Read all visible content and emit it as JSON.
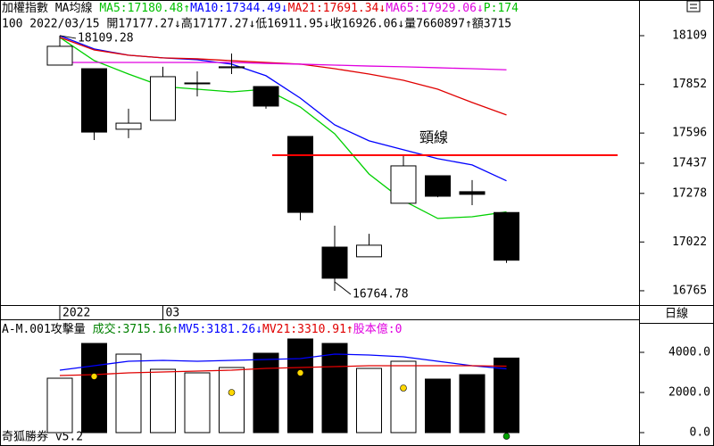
{
  "chart_data": [
    {
      "type": "candlestick",
      "title_parts": [
        {
          "text": "加權指數 MA均線 ",
          "color": "#000000"
        },
        {
          "text": "MA5:17180.48↑",
          "color": "#00c000"
        },
        {
          "text": "MA10:17344.49↓",
          "color": "#0000ff"
        },
        {
          "text": "MA21:17691.34↓",
          "color": "#e00000"
        },
        {
          "text": "MA65:17929.06↓",
          "color": "#e000e0"
        },
        {
          "text": "P:174",
          "color": "#00c000"
        }
      ],
      "info_line": "100 2022/03/15 開17177.27↓高17177.27↓低16911.95↓收16926.06↓量7660897↑額3715",
      "categories": [
        "2022",
        null,
        null,
        "03",
        null,
        null,
        null,
        null,
        null,
        null,
        null,
        null,
        null,
        null
      ],
      "open": [
        17954,
        17935,
        17616,
        17663,
        17860,
        17940,
        17841,
        17578,
        16995,
        16944,
        17226,
        17371,
        17287,
        17177.27
      ],
      "high": [
        18109.28,
        17935,
        17724,
        17945,
        17921,
        18015,
        17841,
        17578,
        17108,
        17065,
        17475,
        17371,
        17348,
        17177.27
      ],
      "low": [
        17954,
        17559,
        17569,
        17663,
        17789,
        17907,
        17724,
        17136,
        16764.78,
        16944,
        17226,
        17258,
        17216,
        16911.95
      ],
      "close": [
        18053,
        17601,
        17648,
        17893,
        17860,
        17945,
        17738,
        17178,
        16831,
        17005,
        17423,
        17263,
        17273,
        16926.06
      ],
      "series": [
        {
          "color": "#00d000",
          "values": [
            18100,
            17978,
            17907,
            17841,
            17827,
            17813,
            17827,
            17733,
            17592,
            17380,
            17240,
            17146,
            17155,
            17180.48
          ]
        },
        {
          "color": "#0000ff",
          "values": [
            18109,
            18039,
            18006,
            17992,
            17982,
            17959,
            17898,
            17780,
            17639,
            17555,
            17508,
            17461,
            17428,
            17344.49
          ]
        },
        {
          "color": "#e00000",
          "values": [
            18100,
            18034,
            18006,
            17992,
            17987,
            17977,
            17968,
            17959,
            17935,
            17907,
            17874,
            17827,
            17757,
            17691.34
          ]
        },
        {
          "color": "#e000e0",
          "values": [
            17968,
            17968,
            17968,
            17968,
            17968,
            17968,
            17963,
            17959,
            17954,
            17949,
            17945,
            17940,
            17935,
            17929.06
          ]
        }
      ],
      "annotations": [
        {
          "text": "18109.28",
          "index": 0,
          "value": 18109.28
        },
        {
          "text": "16764.78",
          "index": 8,
          "value": 16764.78
        }
      ],
      "neckline": {
        "label": "頸線",
        "value": 17479,
        "color": "#ff0000"
      },
      "ylim": [
        16699,
        18203
      ],
      "yticks": [
        18109,
        17852,
        17596,
        17437,
        17278,
        17022,
        16765
      ]
    },
    {
      "type": "bar",
      "title_parts": [
        {
          "text": "A-M.001攻擊量 ",
          "color": "#000000"
        },
        {
          "text": "成交:3715.16↑",
          "color": "#008000"
        },
        {
          "text": "MV5:3181.26↓",
          "color": "#0000ff"
        },
        {
          "text": "MV21:3310.91↑",
          "color": "#e00000"
        },
        {
          "text": "股本億:0",
          "color": "#e000e0"
        }
      ],
      "values": [
        2711,
        4444,
        3911,
        3156,
        2978,
        3244,
        3956,
        4667,
        4444,
        3200,
        3556,
        2667,
        2889,
        3715.16
      ],
      "series": [
        {
          "color": "#0000ff",
          "values": [
            3111,
            3333,
            3556,
            3600,
            3556,
            3600,
            3644,
            3689,
            3911,
            3867,
            3778,
            3556,
            3333,
            3181.26
          ]
        },
        {
          "color": "#e00000",
          "values": [
            2844,
            2889,
            2978,
            3022,
            3067,
            3111,
            3200,
            3244,
            3289,
            3333,
            3333,
            3333,
            3333,
            3310.91
          ]
        }
      ],
      "signals": [
        {
          "index": 1,
          "value": 2800,
          "color": "#ffd700"
        },
        {
          "index": 5,
          "value": 2000,
          "color": "#ffd700"
        },
        {
          "index": 7,
          "value": 2978,
          "color": "#ffd700"
        },
        {
          "index": 10,
          "value": 2222,
          "color": "#ffd700"
        },
        {
          "index": 13,
          "value": -180,
          "color": "#00a000"
        }
      ],
      "ylim": [
        -667,
        5556
      ],
      "yticks": [
        {
          "value": 4000,
          "label": "4000.0"
        },
        {
          "value": 2000,
          "label": "2000.0"
        },
        {
          "value": 0,
          "label": "0.0"
        }
      ]
    }
  ],
  "period": "日線",
  "footer": "奇狐勝券 v5.2"
}
